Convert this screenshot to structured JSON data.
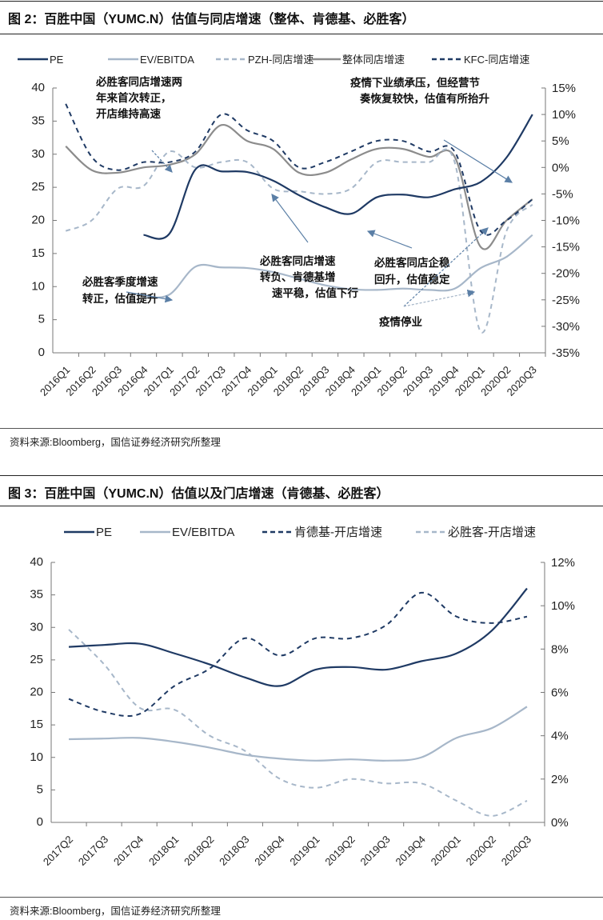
{
  "figure2": {
    "title": "图 2：百胜中国（YUMC.N）估值与同店增速（整体、肯德基、必胜客）",
    "source": "资料来源:Bloomberg，国信证券经济研究所整理"
  },
  "figure3": {
    "title": "图 3：百胜中国（YUMC.N）估值以及门店增速（肯德基、必胜客）",
    "source": "资料来源:Bloomberg，国信证券经济研究所整理"
  },
  "chart_data": [
    {
      "type": "line",
      "categories": [
        "2016Q1",
        "2016Q2",
        "2016Q3",
        "2016Q4",
        "2017Q1",
        "2017Q2",
        "2017Q3",
        "2017Q4",
        "2018Q1",
        "2018Q2",
        "2018Q3",
        "2018Q4",
        "2019Q1",
        "2019Q2",
        "2019Q3",
        "2019Q4",
        "2020Q1",
        "2020Q2",
        "2020Q3"
      ],
      "ylim": [
        0,
        40
      ],
      "yticks": [
        "0",
        "5",
        "10",
        "15",
        "20",
        "25",
        "30",
        "35",
        "40"
      ],
      "y2lim": [
        -35,
        15
      ],
      "y2ticks": [
        "-35%",
        "-30%",
        "-25%",
        "-20%",
        "-15%",
        "-10%",
        "-5%",
        "0%",
        "5%",
        "10%",
        "15%"
      ],
      "legend_position": "top",
      "grid": false,
      "series": [
        {
          "name": "PE",
          "axis": "left",
          "color": "#1f3a64",
          "dash": false,
          "values": [
            null,
            null,
            null,
            17.8,
            18.0,
            27.7,
            27.4,
            27.3,
            26.0,
            23.8,
            22.0,
            21.0,
            23.5,
            23.9,
            23.5,
            24.7,
            25.8,
            29.5,
            36.0
          ]
        },
        {
          "name": "EV/EBITDA",
          "axis": "left",
          "color": "#a7b7c9",
          "dash": false,
          "values": [
            null,
            null,
            null,
            8.4,
            8.8,
            13.0,
            12.9,
            12.8,
            12.2,
            11.2,
            10.2,
            9.6,
            9.5,
            9.7,
            9.5,
            9.7,
            12.8,
            14.5,
            17.8
          ]
        },
        {
          "name": "PZH-同店增速",
          "axis": "right",
          "color": "#a7b7c9",
          "dash": true,
          "values": [
            -12,
            -10,
            -4,
            -3.5,
            3,
            0,
            1,
            1,
            -4,
            -4.5,
            -5,
            -4,
            1,
            1,
            1,
            1,
            -31,
            -12,
            -7
          ]
        },
        {
          "name": "整体同店增速",
          "axis": "right",
          "color": "#8c8c8c",
          "dash": false,
          "values": [
            4,
            -0.5,
            -1,
            0,
            0.5,
            2.5,
            8,
            5,
            3.5,
            -1,
            -1,
            1.5,
            3.5,
            3.5,
            2,
            2,
            -15,
            -10,
            -6
          ]
        },
        {
          "name": "KFC-同店增速",
          "axis": "right",
          "color": "#1f3a64",
          "dash": true,
          "values": [
            12,
            2,
            -0.5,
            1,
            1,
            3,
            10,
            7,
            5,
            0,
            1,
            3,
            5,
            5,
            3,
            3,
            -12,
            -10,
            -6
          ]
        }
      ],
      "annotations": [
        "必胜客同店增速两年来首次转正，开店维持高速",
        "疫情下业绩承压，但经营节奏恢复较快，估值有所抬升",
        "必胜客同店增速转负、肯德基增速平稳，估值下行",
        "必胜客同店企稳回升，估值稳定",
        "必胜客季度增速转正，估值提升",
        "疫情停业"
      ]
    },
    {
      "type": "line",
      "categories": [
        "2017Q2",
        "2017Q3",
        "2017Q4",
        "2018Q1",
        "2018Q2",
        "2018Q3",
        "2018Q4",
        "2019Q1",
        "2019Q2",
        "2019Q3",
        "2019Q4",
        "2020Q1",
        "2020Q2",
        "2020Q3"
      ],
      "ylim": [
        0,
        40
      ],
      "yticks": [
        "0",
        "5",
        "10",
        "15",
        "20",
        "25",
        "30",
        "35",
        "40"
      ],
      "y2lim": [
        0,
        12
      ],
      "y2ticks": [
        "0%",
        "2%",
        "4%",
        "6%",
        "8%",
        "10%",
        "12%"
      ],
      "legend_position": "top",
      "grid": false,
      "series": [
        {
          "name": "PE",
          "axis": "left",
          "color": "#1f3a64",
          "dash": false,
          "values": [
            27.0,
            27.3,
            27.5,
            26.0,
            24.3,
            22.3,
            21.0,
            23.5,
            23.9,
            23.5,
            24.8,
            26.0,
            29.5,
            36.0
          ]
        },
        {
          "name": "EV/EBITDA",
          "axis": "left",
          "color": "#a7b7c9",
          "dash": false,
          "values": [
            12.8,
            12.9,
            13.0,
            12.4,
            11.5,
            10.4,
            9.8,
            9.5,
            9.7,
            9.5,
            10.0,
            13.0,
            14.5,
            17.8
          ]
        },
        {
          "name": "肯德基-开店增速",
          "axis": "right",
          "color": "#1f3a64",
          "dash": true,
          "values": [
            5.7,
            5.1,
            5.0,
            6.3,
            7.1,
            8.5,
            7.7,
            8.5,
            8.5,
            9.1,
            10.6,
            9.5,
            9.2,
            9.5
          ]
        },
        {
          "name": "必胜客-开店增速",
          "axis": "right",
          "color": "#a7b7c9",
          "dash": true,
          "values": [
            8.9,
            7.3,
            5.3,
            5.2,
            4.0,
            3.3,
            2.0,
            1.6,
            2.0,
            1.8,
            1.8,
            1.0,
            0.3,
            1.0
          ]
        }
      ]
    }
  ]
}
